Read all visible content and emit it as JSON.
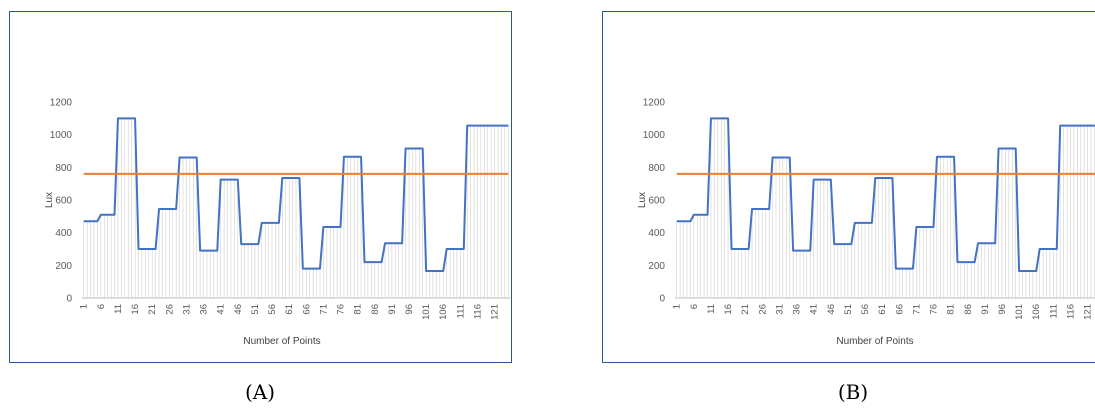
{
  "colors": {
    "series": "#4472c4",
    "threshold": "#ed7d31",
    "frame": "#2f5597",
    "grid": "#d0d0d0",
    "axis": "#595959"
  },
  "panels": [
    {
      "caption": "(A)",
      "chart_data": {
        "type": "line",
        "title": "",
        "xlabel": "Number of Points",
        "ylabel": "Lux",
        "ylim": [
          0,
          1200
        ],
        "yticks": [
          0,
          200,
          400,
          600,
          800,
          1000,
          1200
        ],
        "xticks": [
          "1",
          "6",
          "11",
          "16",
          "21",
          "26",
          "31",
          "36",
          "41",
          "46",
          "51",
          "56",
          "61",
          "66",
          "71",
          "76",
          "81",
          "86",
          "91",
          "96",
          "101",
          "106",
          "111",
          "116",
          "121"
        ],
        "x_range": [
          1,
          125
        ],
        "grid": false,
        "series": [
          {
            "style": "step",
            "levels": [
              [
                1,
                5,
                470
              ],
              [
                6,
                10,
                510
              ],
              [
                11,
                16,
                1100
              ],
              [
                17,
                22,
                300
              ],
              [
                23,
                28,
                545
              ],
              [
                29,
                34,
                860
              ],
              [
                35,
                40,
                290
              ],
              [
                41,
                46,
                725
              ],
              [
                47,
                52,
                330
              ],
              [
                53,
                58,
                460
              ],
              [
                59,
                64,
                735
              ],
              [
                65,
                70,
                180
              ],
              [
                71,
                76,
                435
              ],
              [
                77,
                82,
                865
              ],
              [
                83,
                88,
                220
              ],
              [
                89,
                94,
                335
              ],
              [
                95,
                100,
                915
              ],
              [
                101,
                106,
                165
              ],
              [
                107,
                112,
                300
              ],
              [
                113,
                125,
                1055
              ]
            ]
          },
          {
            "style": "constant",
            "value": 760
          }
        ]
      }
    },
    {
      "caption": "(B)",
      "chart_data": {
        "type": "line",
        "title": "",
        "xlabel": "Number of Points",
        "ylabel": "Lux",
        "ylim": [
          0,
          1200
        ],
        "yticks": [
          0,
          200,
          400,
          600,
          800,
          1000,
          1200
        ],
        "xticks": [
          "1",
          "6",
          "11",
          "16",
          "21",
          "26",
          "31",
          "36",
          "41",
          "46",
          "51",
          "56",
          "61",
          "66",
          "71",
          "76",
          "81",
          "86",
          "91",
          "96",
          "101",
          "106",
          "111",
          "116",
          "121"
        ],
        "x_range": [
          1,
          125
        ],
        "grid": false,
        "series": [
          {
            "style": "step",
            "levels": [
              [
                1,
                5,
                470
              ],
              [
                6,
                10,
                510
              ],
              [
                11,
                16,
                1100
              ],
              [
                17,
                22,
                300
              ],
              [
                23,
                28,
                545
              ],
              [
                29,
                34,
                860
              ],
              [
                35,
                40,
                290
              ],
              [
                41,
                46,
                725
              ],
              [
                47,
                52,
                330
              ],
              [
                53,
                58,
                460
              ],
              [
                59,
                64,
                735
              ],
              [
                65,
                70,
                180
              ],
              [
                71,
                76,
                435
              ],
              [
                77,
                82,
                865
              ],
              [
                83,
                88,
                220
              ],
              [
                89,
                94,
                335
              ],
              [
                95,
                100,
                915
              ],
              [
                101,
                106,
                165
              ],
              [
                107,
                112,
                300
              ],
              [
                113,
                125,
                1055
              ]
            ]
          },
          {
            "style": "constant",
            "value": 760
          }
        ]
      }
    }
  ]
}
